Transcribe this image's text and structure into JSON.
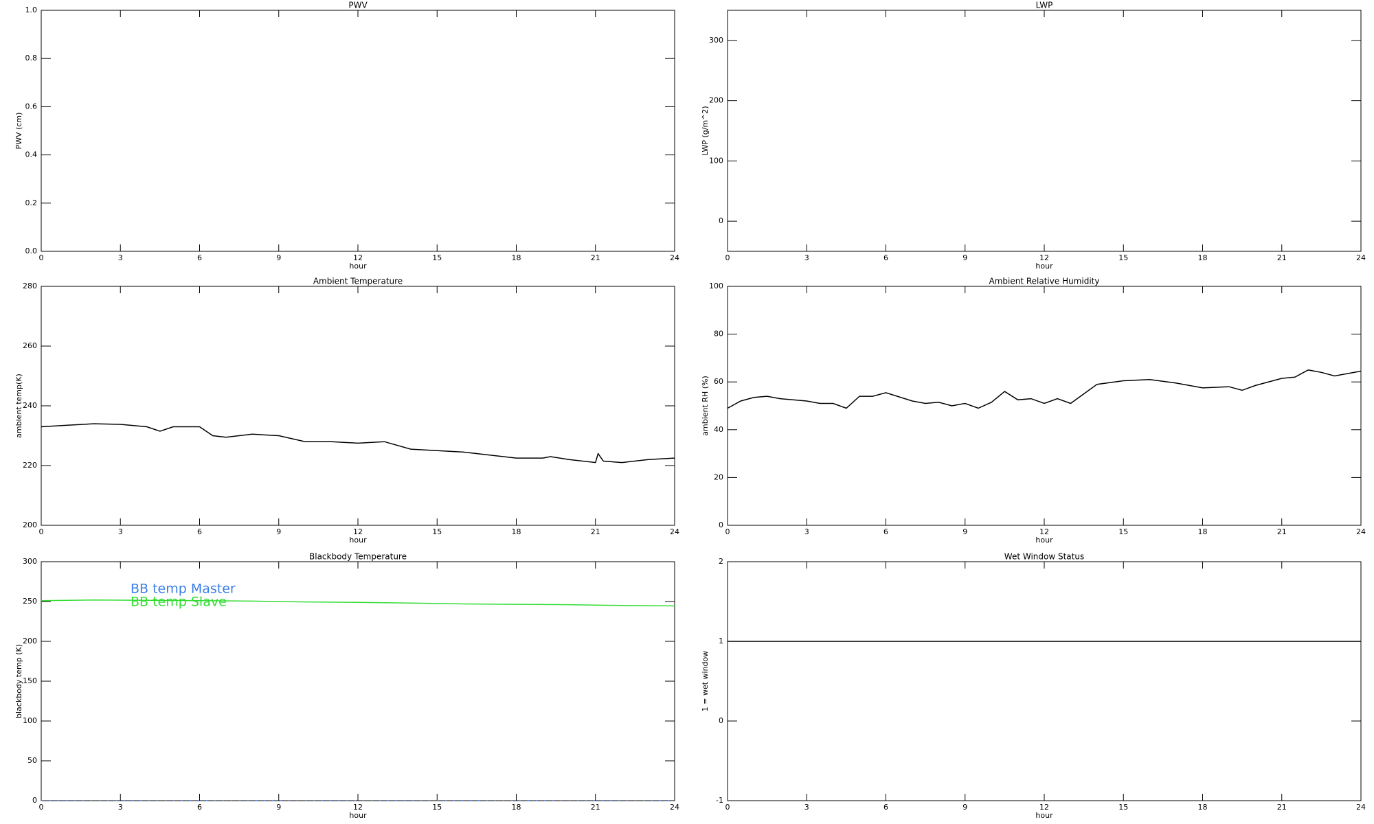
{
  "chart_data": [
    {
      "type": "line",
      "title": "PWV",
      "xlabel": "hour",
      "ylabel": "PWV (cm)",
      "xlim": [
        0,
        24
      ],
      "xticks": [
        0,
        3,
        6,
        9,
        12,
        15,
        18,
        21,
        24
      ],
      "ylim": [
        0,
        1
      ],
      "yticks": [
        {
          "value": 0,
          "label": "0.0"
        },
        0.2,
        0.4,
        0.6,
        0.8,
        {
          "value": 1,
          "label": "1.0"
        }
      ]
    },
    {
      "type": "line",
      "title": "LWP",
      "xlabel": "hour",
      "ylabel": "LWP (g/m^2)",
      "xlim": [
        0,
        24
      ],
      "xticks": [
        0,
        3,
        6,
        9,
        12,
        15,
        18,
        21,
        24
      ],
      "ylim": [
        -50,
        350
      ],
      "yticks": [
        0,
        100,
        200,
        300
      ]
    },
    {
      "type": "line",
      "title": "Ambient Temperature",
      "xlabel": "hour",
      "ylabel": "ambient temp(K)",
      "xlim": [
        0,
        24
      ],
      "xticks": [
        0,
        3,
        6,
        9,
        12,
        15,
        18,
        21,
        24
      ],
      "ylim": [
        200,
        280
      ],
      "yticks": [
        200,
        220,
        240,
        260,
        280
      ],
      "x": [
        0,
        1,
        2,
        3,
        4,
        4.5,
        5,
        6,
        6.5,
        7,
        8,
        9,
        10,
        11,
        12,
        13,
        14,
        15,
        16,
        17,
        18,
        19,
        19.3,
        20,
        21,
        21.1,
        21.3,
        22,
        23,
        24
      ],
      "series": [
        {
          "color": "#000000",
          "values": [
            233,
            233.5,
            234,
            233.8,
            233,
            231.5,
            233,
            233,
            230,
            229.5,
            230.5,
            230,
            228,
            228,
            227.5,
            228,
            225.5,
            225,
            224.5,
            223.5,
            222.5,
            222.5,
            223,
            222,
            221,
            224,
            221.5,
            221,
            222,
            222.5
          ]
        }
      ]
    },
    {
      "type": "line",
      "title": "Ambient Relative Humidity",
      "xlabel": "hour",
      "ylabel": "ambient RH (%)",
      "xlim": [
        0,
        24
      ],
      "xticks": [
        0,
        3,
        6,
        9,
        12,
        15,
        18,
        21,
        24
      ],
      "ylim": [
        0,
        100
      ],
      "yticks": [
        0,
        20,
        40,
        60,
        80,
        100
      ],
      "x": [
        0,
        0.5,
        1,
        1.5,
        2,
        3,
        3.5,
        4,
        4.5,
        5,
        5.5,
        6,
        7,
        7.5,
        8,
        8.5,
        9,
        9.5,
        10,
        10.5,
        11,
        11.5,
        12,
        12.5,
        13,
        13.5,
        14,
        15,
        16,
        17,
        18,
        19,
        19.5,
        20,
        21,
        21.5,
        22,
        22.5,
        23,
        24
      ],
      "series": [
        {
          "color": "#000000",
          "values": [
            49,
            52,
            53.5,
            54,
            53,
            52,
            51,
            51,
            49,
            54,
            54,
            55.5,
            52,
            51,
            51.5,
            50,
            51,
            49,
            51.5,
            56,
            52.5,
            53,
            51,
            53,
            51,
            55,
            59,
            60.5,
            61,
            59.5,
            57.5,
            58,
            56.5,
            58.5,
            61.5,
            62,
            65,
            64,
            62.5,
            64.5
          ]
        }
      ]
    },
    {
      "type": "line",
      "title": "Blackbody Temperature",
      "xlabel": "hour",
      "ylabel": "blackbody temp (K)",
      "xlim": [
        0,
        24
      ],
      "xticks": [
        0,
        3,
        6,
        9,
        12,
        15,
        18,
        21,
        24
      ],
      "ylim": [
        0,
        300
      ],
      "yticks": [
        0,
        50,
        100,
        150,
        200,
        250,
        300
      ],
      "x": [
        0,
        2,
        4,
        6,
        8,
        10,
        12,
        14,
        16,
        18,
        20,
        22,
        24
      ],
      "series": [
        {
          "name": "BB temp Master",
          "color": "#3a7fe8",
          "values": [
            0,
            0,
            0,
            0,
            0,
            0,
            0,
            0,
            0,
            0,
            0,
            0,
            0
          ]
        },
        {
          "name": "BB temp Slave",
          "color": "#33dd33",
          "values": [
            251,
            252,
            251.5,
            251,
            250.5,
            249.5,
            249,
            248,
            247,
            246.5,
            246,
            245,
            244.5
          ]
        }
      ]
    },
    {
      "type": "line",
      "title": "Wet Window Status",
      "xlabel": "hour",
      "ylabel": "1 = wet window",
      "xlim": [
        0,
        24
      ],
      "xticks": [
        0,
        3,
        6,
        9,
        12,
        15,
        18,
        21,
        24
      ],
      "ylim": [
        -1,
        2
      ],
      "yticks": [
        -1,
        0,
        1,
        2
      ],
      "x": [
        0,
        24
      ],
      "series": [
        {
          "color": "#000000",
          "values": [
            1,
            1
          ]
        }
      ]
    }
  ]
}
